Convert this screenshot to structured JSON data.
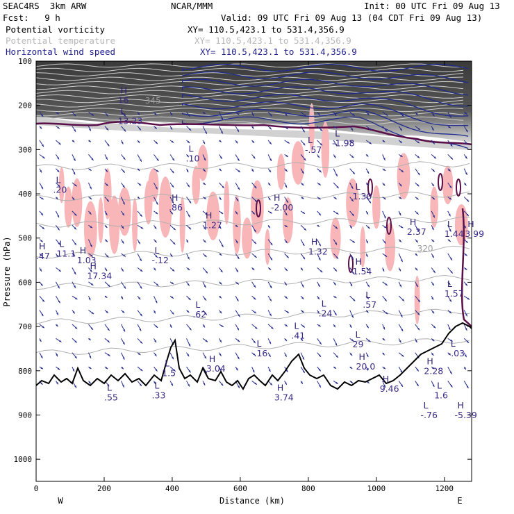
{
  "header": {
    "model": "SEAC4RS  3km ARW",
    "center": "NCAR/MMM",
    "init": "Init: 00 UTC Fri 09 Aug 13",
    "fcst": "Fcst:   9 h",
    "valid": "Valid: 09 UTC Fri 09 Aug 13 (04 CDT Fri 09 Aug 13)"
  },
  "legend": [
    {
      "name": "Potential vorticity",
      "xy": "XY= 110.5,423.1 to 531.4,356.9",
      "color": "#000000"
    },
    {
      "name": "Potential temperature",
      "xy": "XY= 110.5,423.1 to 531.4,356.9",
      "color": "#b8b8b8"
    },
    {
      "name": "Horizontal wind speed",
      "xy": "XY= 110.5,423.1 to 531.4,356.9",
      "color": "#1e1e8c"
    }
  ],
  "chart_data": {
    "type": "heatmap",
    "xlabel": "Distance (km)",
    "ylabel": "Pressure (hPa)",
    "xlim": [
      0,
      1280
    ],
    "ylim": [
      1050,
      100
    ],
    "x_ticks": [
      0,
      200,
      400,
      600,
      800,
      1000,
      1200
    ],
    "y_ticks": [
      100,
      200,
      300,
      400,
      500,
      600,
      700,
      800,
      900,
      1000
    ],
    "x_end_labels": {
      "left": "W",
      "right": "E"
    },
    "isentrope_labels": [
      {
        "text": "345",
        "x": 320,
        "p": 196
      },
      {
        "text": "320",
        "x": 1120,
        "p": 530
      }
    ],
    "extrema_labels": [
      {
        "kind": "H",
        "value": "16",
        "x": 240,
        "p": 178
      },
      {
        "kind": "L",
        "value": "13.23",
        "x": 240,
        "p": 225
      },
      {
        "kind": "L",
        "value": ".20",
        "x": 50,
        "p": 380
      },
      {
        "kind": "L",
        "value": ".10",
        "x": 440,
        "p": 310
      },
      {
        "kind": "H",
        "value": ".86",
        "x": 390,
        "p": 420
      },
      {
        "kind": "H",
        "value": "1.27",
        "x": 490,
        "p": 460
      },
      {
        "kind": "H",
        "value": "-2.00",
        "x": 690,
        "p": 420
      },
      {
        "kind": "L",
        "value": "-.57",
        "x": 790,
        "p": 290
      },
      {
        "kind": "L",
        "value": "-1.98",
        "x": 870,
        "p": 275
      },
      {
        "kind": "L",
        "value": "1.30",
        "x": 930,
        "p": 395
      },
      {
        "kind": "H",
        "value": "1.32",
        "x": 800,
        "p": 520
      },
      {
        "kind": "H",
        "value": "2.37",
        "x": 1090,
        "p": 475
      },
      {
        "kind": "L",
        "value": "1.44",
        "x": 1200,
        "p": 480
      },
      {
        "kind": "H",
        "value": "3.99",
        "x": 1260,
        "p": 480
      },
      {
        "kind": "H",
        "value": ".47",
        "x": 0,
        "p": 530
      },
      {
        "kind": "L",
        "value": "11.1",
        "x": 60,
        "p": 525
      },
      {
        "kind": "H",
        "value": "1.03",
        "x": 120,
        "p": 540
      },
      {
        "kind": "L",
        "value": "-.12",
        "x": 340,
        "p": 540
      },
      {
        "kind": "H",
        "value": "17.34",
        "x": 150,
        "p": 575
      },
      {
        "kind": "H",
        "value": "1.54",
        "x": 930,
        "p": 565
      },
      {
        "kind": "L",
        "value": "1.57",
        "x": 1200,
        "p": 615
      },
      {
        "kind": "L",
        "value": ".62",
        "x": 460,
        "p": 662
      },
      {
        "kind": "L",
        "value": ".24",
        "x": 830,
        "p": 660
      },
      {
        "kind": "L",
        "value": ".57",
        "x": 960,
        "p": 640
      },
      {
        "kind": "L",
        "value": ".41",
        "x": 750,
        "p": 710
      },
      {
        "kind": "L",
        "value": ".16",
        "x": 640,
        "p": 750
      },
      {
        "kind": "H",
        "value": "3.04",
        "x": 500,
        "p": 785
      },
      {
        "kind": "L",
        "value": "1.5",
        "x": 370,
        "p": 795
      },
      {
        "kind": "L",
        "value": "-.03",
        "x": 1210,
        "p": 750
      },
      {
        "kind": "H",
        "value": "2.28",
        "x": 1140,
        "p": 790
      },
      {
        "kind": "L",
        "value": "29",
        "x": 930,
        "p": 730
      },
      {
        "kind": "H",
        "value": "20.0",
        "x": 940,
        "p": 780
      },
      {
        "kind": "H",
        "value": "9.46",
        "x": 1010,
        "p": 830
      },
      {
        "kind": "L",
        "value": "1.6",
        "x": 1170,
        "p": 845
      },
      {
        "kind": "L",
        "value": "-.76",
        "x": 1130,
        "p": 890
      },
      {
        "kind": "H",
        "value": "-5.39",
        "x": 1230,
        "p": 890
      },
      {
        "kind": "L",
        "value": ".33",
        "x": 340,
        "p": 845
      },
      {
        "kind": "L",
        "value": ".55",
        "x": 200,
        "p": 850
      },
      {
        "kind": "H",
        "value": "3.74",
        "x": 700,
        "p": 850
      }
    ]
  }
}
